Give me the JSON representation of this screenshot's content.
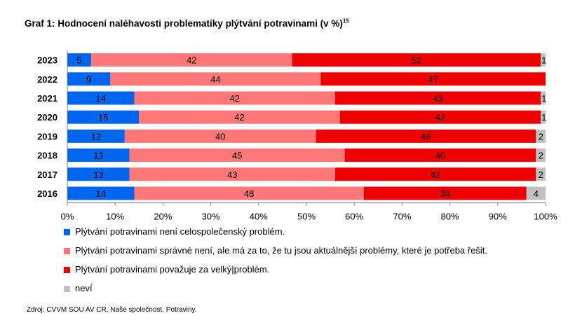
{
  "title": "Graf 1: Hodnocení naléhavosti problematiky plýtvání potravinami (v %)",
  "title_superscript": "15",
  "source": "Zdroj: CVVM SOU AV CR, Naše společnost, Potraviny.",
  "colors": {
    "series1": "#0066ee",
    "series2": "#ff7777",
    "series3": "#ee0000",
    "series4": "#c0c0c0"
  },
  "chart_data": {
    "type": "bar",
    "orientation": "horizontal",
    "stacked": "percent",
    "categories": [
      "2023",
      "2022",
      "2021",
      "2020",
      "2019",
      "2018",
      "2017",
      "2016"
    ],
    "series": [
      {
        "name": "Plýtvání potravinami není celospolečenský problém.",
        "values": [
          5,
          9,
          14,
          15,
          12,
          13,
          13,
          14
        ]
      },
      {
        "name": "Plýtvání potravinami správné není, ale má za to, že tu jsou aktuálnější problémy, které je potřeba řešit.",
        "values": [
          42,
          44,
          42,
          42,
          40,
          45,
          43,
          48
        ]
      },
      {
        "name": "Plýtvání potravinami považuje za velký|problém.",
        "values": [
          52,
          47,
          43,
          42,
          46,
          40,
          42,
          34
        ]
      },
      {
        "name": "neví",
        "values": [
          1,
          0,
          1,
          1,
          2,
          2,
          2,
          4
        ]
      }
    ],
    "x_ticks": [
      "0%",
      "10%",
      "20%",
      "30%",
      "40%",
      "50%",
      "60%",
      "70%",
      "80%",
      "90%",
      "100%"
    ],
    "xlim": [
      0,
      100
    ],
    "grid": false,
    "legend_position": "bottom"
  }
}
